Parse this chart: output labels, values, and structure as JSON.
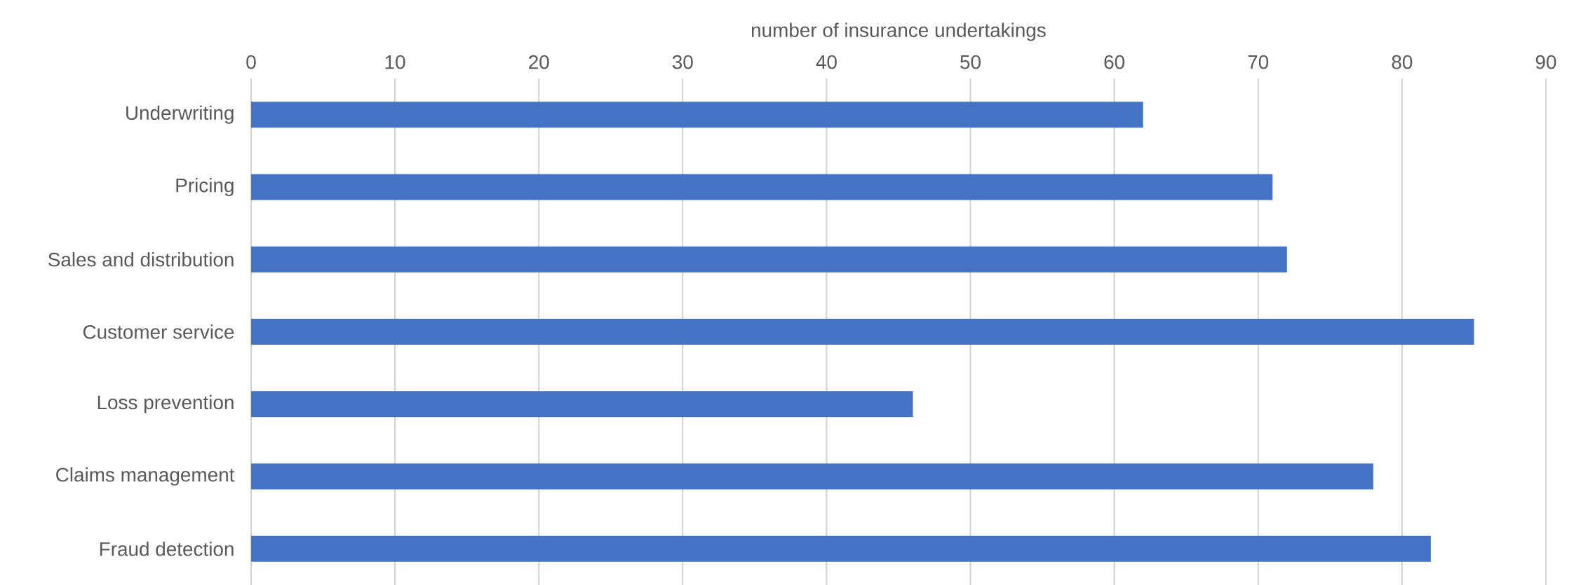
{
  "chart_data": {
    "type": "bar",
    "orientation": "horizontal",
    "xlabel": "number of insurance undertakings",
    "categories": [
      "Underwriting",
      "Pricing",
      "Sales and distribution",
      "Customer service",
      "Loss prevention",
      "Claims management",
      "Fraud detection"
    ],
    "values": [
      62,
      71,
      72,
      85,
      46,
      78,
      82
    ],
    "color": "#4472c4",
    "xlim": [
      0,
      90
    ],
    "xticks": [
      0,
      10,
      20,
      30,
      40,
      50,
      60,
      70,
      80,
      90
    ],
    "grid": "x"
  }
}
